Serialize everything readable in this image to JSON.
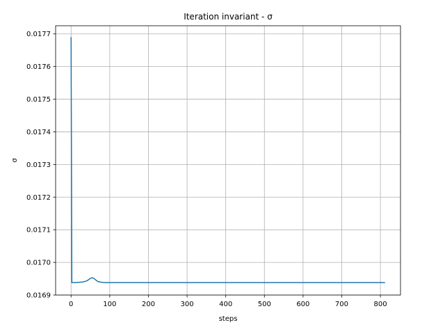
{
  "chart_data": {
    "type": "line",
    "title": "Iteration invariant - σ",
    "xlabel": "steps",
    "ylabel": "σ",
    "xlim": [
      -40,
      852
    ],
    "ylim": [
      0.0169,
      0.017725
    ],
    "x_ticks": [
      0,
      100,
      200,
      300,
      400,
      500,
      600,
      700,
      800
    ],
    "x_tick_labels": [
      "0",
      "100",
      "200",
      "300",
      "400",
      "500",
      "600",
      "700",
      "800"
    ],
    "y_ticks": [
      0.0169,
      0.017,
      0.0171,
      0.0172,
      0.0173,
      0.0174,
      0.0175,
      0.0176,
      0.0177
    ],
    "y_tick_labels": [
      "0.0169",
      "0.0170",
      "0.0171",
      "0.0172",
      "0.0173",
      "0.0174",
      "0.0175",
      "0.0176",
      "0.0177"
    ],
    "grid": true,
    "legend": "none",
    "series": [
      {
        "color": "#1f77b4",
        "x": [
          0,
          2,
          10,
          20,
          30,
          40,
          45,
          50,
          55,
          60,
          65,
          70,
          80,
          90,
          100,
          150,
          200,
          300,
          400,
          500,
          600,
          700,
          800,
          812
        ],
        "y": [
          0.01769,
          0.016938,
          0.016938,
          0.016939,
          0.01694,
          0.016943,
          0.016947,
          0.016951,
          0.016953,
          0.01695,
          0.016945,
          0.016941,
          0.016939,
          0.016938,
          0.016938,
          0.016938,
          0.016938,
          0.016938,
          0.016938,
          0.016938,
          0.016938,
          0.016938,
          0.016938,
          0.016938
        ]
      }
    ]
  }
}
